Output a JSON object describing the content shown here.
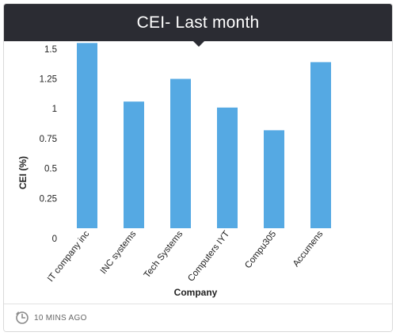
{
  "card": {
    "title": "CEI- Last month",
    "footer_text": "10 MINS AGO",
    "footer_icon": "clock-icon"
  },
  "chart_data": {
    "type": "bar",
    "title": "CEI- Last month",
    "xlabel": "Company",
    "ylabel": "CEI (%)",
    "categories": [
      "IT company inc",
      "INC systems",
      "Tech Systems",
      "Computers IYT",
      "Compu305",
      "Accumens"
    ],
    "values": [
      1.55,
      1.06,
      1.25,
      1.01,
      0.82,
      1.39
    ],
    "ylim": [
      0,
      1.625
    ],
    "yticks": [
      0,
      0.25,
      0.5,
      0.75,
      1,
      1.25,
      1.5
    ],
    "ytick_labels": [
      "0",
      "0.25",
      "0.5",
      "0.75",
      "1",
      "1.25",
      "1.5"
    ],
    "grid": false,
    "bar_color": "#55a9e3"
  }
}
